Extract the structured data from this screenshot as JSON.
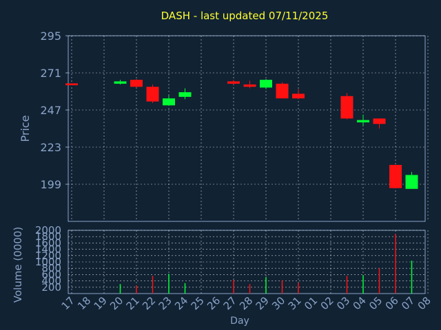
{
  "chart_data": [
    {
      "type": "candlestick",
      "title": "DASH - last updated 07/11/2025",
      "ylabel": "Price",
      "ylim": [
        175,
        295
      ],
      "yticks": [
        "295",
        "271",
        "247",
        "223",
        "199"
      ],
      "grid": true,
      "colors": {
        "up": "#00ff33",
        "down": "#ff1111",
        "background": "#112233",
        "grid": "#ffffff",
        "text": "#8aa4c8",
        "title": "#ffff33"
      },
      "categories": [
        "17",
        "18",
        "19",
        "20",
        "21",
        "22",
        "23",
        "24",
        "25",
        "26",
        "27",
        "28",
        "29",
        "30",
        "31",
        "01",
        "02",
        "03",
        "04",
        "05",
        "06",
        "07",
        "08"
      ],
      "candles": [
        {
          "day": "17",
          "open": 264.2,
          "high": 264.2,
          "low": 263.0,
          "close": 263.0
        },
        {
          "day": "20",
          "open": 264.0,
          "high": 266.5,
          "low": 263.5,
          "close": 265.5
        },
        {
          "day": "21",
          "open": 266.5,
          "high": 267.0,
          "low": 261.5,
          "close": 262.0
        },
        {
          "day": "22",
          "open": 262.0,
          "high": 263.5,
          "low": 251.5,
          "close": 252.5
        },
        {
          "day": "23",
          "open": 250.0,
          "high": 256.5,
          "low": 250.0,
          "close": 254.5
        },
        {
          "day": "24",
          "open": 255.5,
          "high": 261.0,
          "low": 254.0,
          "close": 258.5
        },
        {
          "day": "27",
          "open": 265.5,
          "high": 266.5,
          "low": 263.5,
          "close": 264.0
        },
        {
          "day": "28",
          "open": 263.5,
          "high": 266.0,
          "low": 261.0,
          "close": 262.0
        },
        {
          "day": "29",
          "open": 261.5,
          "high": 267.0,
          "low": 260.5,
          "close": 266.5
        },
        {
          "day": "30",
          "open": 264.0,
          "high": 265.0,
          "low": 254.5,
          "close": 254.5
        },
        {
          "day": "31",
          "open": 257.5,
          "high": 260.5,
          "low": 254.0,
          "close": 254.5
        },
        {
          "day": "03",
          "open": 256.0,
          "high": 258.0,
          "low": 241.0,
          "close": 241.5
        },
        {
          "day": "04",
          "open": 239.0,
          "high": 244.0,
          "low": 237.0,
          "close": 240.5
        },
        {
          "day": "05",
          "open": 241.5,
          "high": 241.5,
          "low": 235.0,
          "close": 238.0
        },
        {
          "day": "06",
          "open": 211.5,
          "high": 211.5,
          "low": 196.5,
          "close": 196.5
        },
        {
          "day": "07",
          "open": 196.0,
          "high": 207.0,
          "low": 196.0,
          "close": 205.0
        }
      ]
    },
    {
      "type": "bar",
      "ylabel": "Volume (0000)",
      "xlabel": "Day",
      "ylim": [
        0,
        2000
      ],
      "yticks": [
        "2000",
        "1800",
        "1600",
        "1400",
        "1200",
        "1000",
        "800",
        "600",
        "400",
        "200"
      ],
      "categories": [
        "17",
        "18",
        "19",
        "20",
        "21",
        "22",
        "23",
        "24",
        "25",
        "26",
        "27",
        "28",
        "29",
        "30",
        "31",
        "01",
        "02",
        "03",
        "04",
        "05",
        "06",
        "07",
        "08"
      ],
      "values": [
        0,
        0,
        0,
        300,
        250,
        560,
        620,
        330,
        0,
        0,
        430,
        300,
        520,
        420,
        340,
        0,
        0,
        560,
        580,
        800,
        1880,
        1040,
        0
      ],
      "bar_colors": [
        "",
        "",
        "",
        "#00ff33",
        "#ff1111",
        "#ff1111",
        "#00ff33",
        "#00ff33",
        "",
        "",
        "#ff1111",
        "#ff1111",
        "#00ff33",
        "#ff1111",
        "#ff1111",
        "",
        "",
        "#ff1111",
        "#00ff33",
        "#ff1111",
        "#ff1111",
        "#00ff33",
        ""
      ]
    }
  ]
}
